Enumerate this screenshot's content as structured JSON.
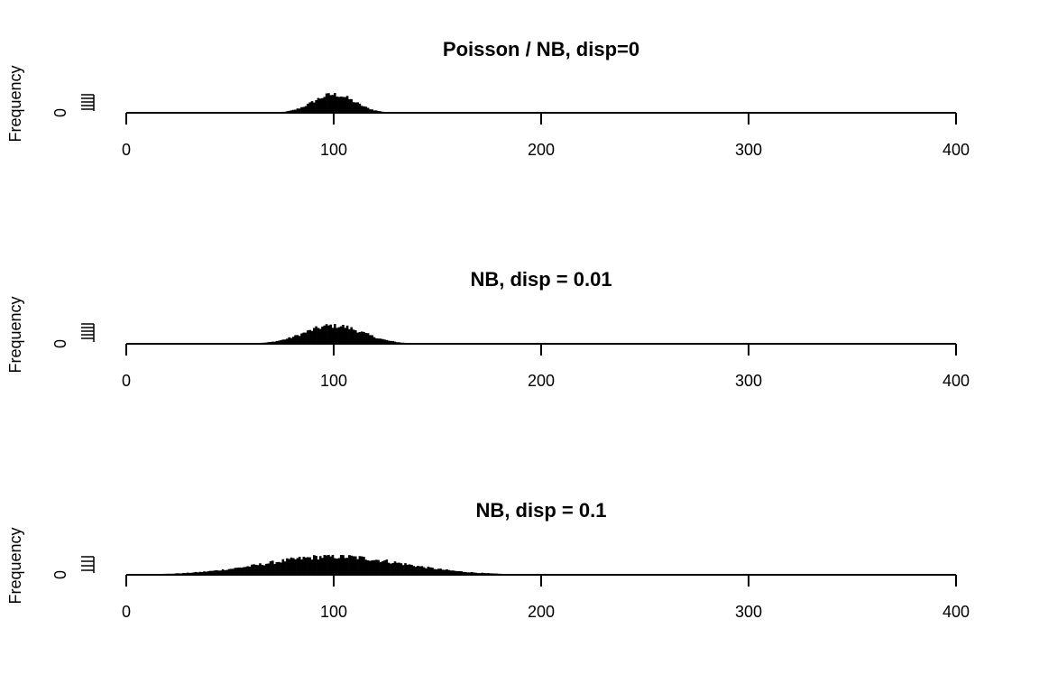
{
  "chart_data": [
    {
      "type": "histogram",
      "title": "Poisson / NB, disp=0",
      "xlabel": "",
      "ylabel": "Frequency",
      "xlim": [
        0,
        400
      ],
      "x_ticks": [
        "0",
        "100",
        "200",
        "300",
        "400"
      ],
      "y_ticks": [
        "0"
      ],
      "bins": {
        "start": 0,
        "width": 1
      },
      "distribution": {
        "mean": 100,
        "sd": 10
      },
      "bar_color": "#000000"
    },
    {
      "type": "histogram",
      "title": "NB, disp = 0.01",
      "xlabel": "",
      "ylabel": "Frequency",
      "xlim": [
        0,
        400
      ],
      "x_ticks": [
        "0",
        "100",
        "200",
        "300",
        "400"
      ],
      "y_ticks": [
        "0"
      ],
      "bins": {
        "start": 0,
        "width": 1
      },
      "distribution": {
        "mean": 100,
        "sd": 14.1
      },
      "bar_color": "#000000"
    },
    {
      "type": "histogram",
      "title": "NB, disp = 0.1",
      "xlabel": "",
      "ylabel": "Frequency",
      "xlim": [
        0,
        400
      ],
      "x_ticks": [
        "0",
        "100",
        "200",
        "300",
        "400"
      ],
      "y_ticks": [
        "0"
      ],
      "bins": {
        "start": 0,
        "width": 1
      },
      "distribution": {
        "mean": 100,
        "sd": 33.2
      },
      "bar_color": "#000000"
    }
  ]
}
